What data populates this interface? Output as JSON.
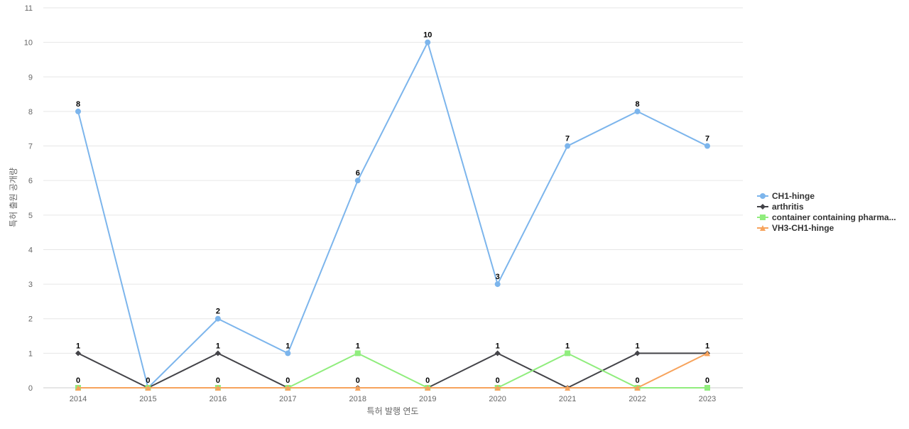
{
  "chart_data": {
    "type": "line",
    "title": "",
    "xlabel": "특허 발행 연도",
    "ylabel": "특허 출원 공개량",
    "categories": [
      "2014",
      "2015",
      "2016",
      "2017",
      "2018",
      "2019",
      "2020",
      "2021",
      "2022",
      "2023"
    ],
    "ylim": [
      0,
      11
    ],
    "yticks": [
      0,
      1,
      2,
      3,
      4,
      5,
      6,
      7,
      8,
      9,
      10,
      11
    ],
    "grid": true,
    "legend_position": "right",
    "series": [
      {
        "name": "CH1-hinge",
        "values": [
          8,
          0,
          2,
          1,
          6,
          10,
          3,
          7,
          8,
          7
        ],
        "color": "#7cb5ec",
        "marker": "circle",
        "labels": [
          "8",
          "0",
          "2",
          "1",
          "6",
          "10",
          "3",
          "7",
          "8",
          "7"
        ]
      },
      {
        "name": "arthritis",
        "values": [
          1,
          0,
          1,
          0,
          0,
          0,
          1,
          0,
          1,
          1
        ],
        "color": "#434348",
        "marker": "diamond",
        "labels": [
          "1",
          "0",
          "1",
          "0",
          "0",
          "0",
          "1",
          "0",
          "1",
          "1"
        ]
      },
      {
        "name": "container containing pharma...",
        "values": [
          0,
          0,
          0,
          0,
          1,
          0,
          0,
          1,
          0,
          0
        ],
        "color": "#90ed7d",
        "marker": "square",
        "labels": [
          "0",
          "0",
          "0",
          "0",
          "1",
          "0",
          "0",
          "1",
          "0",
          "0"
        ]
      },
      {
        "name": "VH3-CH1-hinge",
        "values": [
          0,
          0,
          0,
          0,
          0,
          0,
          0,
          0,
          0,
          1
        ],
        "color": "#f7a35c",
        "marker": "triangle",
        "labels": [
          "0",
          "0",
          "0",
          "0",
          "0",
          "0",
          "0",
          "0",
          "0",
          "1"
        ]
      }
    ],
    "data_labels": [
      {
        "series": 0,
        "index": 0
      },
      {
        "series": 0,
        "index": 1
      },
      {
        "series": 0,
        "index": 2
      },
      {
        "series": 0,
        "index": 3
      },
      {
        "series": 0,
        "index": 4
      },
      {
        "series": 0,
        "index": 5
      },
      {
        "series": 0,
        "index": 6
      },
      {
        "series": 0,
        "index": 7
      },
      {
        "series": 0,
        "index": 8
      },
      {
        "series": 0,
        "index": 9
      },
      {
        "series": 1,
        "index": 0
      },
      {
        "series": 1,
        "index": 2
      },
      {
        "series": 1,
        "index": 6
      },
      {
        "series": 1,
        "index": 8
      },
      {
        "series": 1,
        "index": 9
      },
      {
        "series": 2,
        "index": 0
      },
      {
        "series": 2,
        "index": 2
      },
      {
        "series": 2,
        "index": 3
      },
      {
        "series": 2,
        "index": 4
      },
      {
        "series": 2,
        "index": 5
      },
      {
        "series": 2,
        "index": 6
      },
      {
        "series": 2,
        "index": 7
      },
      {
        "series": 2,
        "index": 8
      },
      {
        "series": 2,
        "index": 9
      },
      {
        "series": 3,
        "index": 4
      }
    ]
  }
}
